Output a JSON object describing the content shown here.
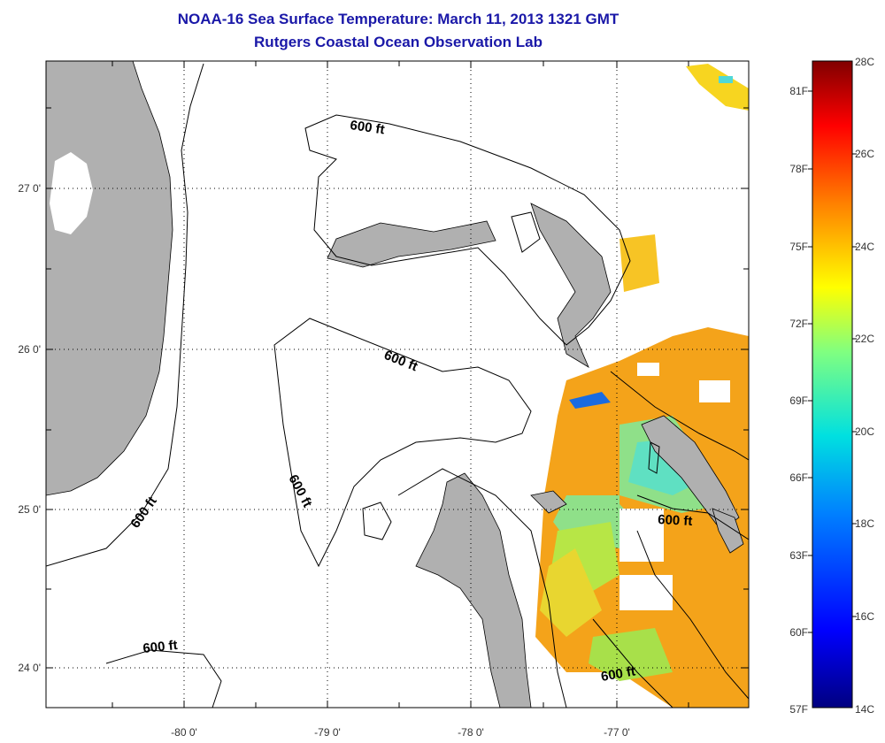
{
  "title": "NOAA-16 Sea Surface Temperature:  March 11, 2013 1321 GMT",
  "subtitle": "Rutgers Coastal Ocean Observation Lab",
  "map": {
    "lon_labels": [
      "-80 0'",
      "-79 0'",
      "-78 0'",
      "-77 0'"
    ],
    "lat_labels": [
      "27 0'",
      "26 0'",
      "25 0'",
      "24 0'"
    ],
    "contour_label": "600 ft",
    "colors": {
      "land": "#b0b0b0",
      "ocean": "#ffffff",
      "coast": "#000000",
      "grid": "#000000"
    }
  },
  "colorbar": {
    "fahrenheit_labels": [
      "81F",
      "78F",
      "75F",
      "72F",
      "69F",
      "66F",
      "63F",
      "60F",
      "57F"
    ],
    "celsius_labels": [
      "28C",
      "26C",
      "24C",
      "22C",
      "20C",
      "18C",
      "16C",
      "14C"
    ],
    "colors": [
      "#000080",
      "#0000ff",
      "#0080ff",
      "#00e0e0",
      "#80ff80",
      "#ffff00",
      "#ff8000",
      "#ff0000",
      "#800000"
    ]
  }
}
